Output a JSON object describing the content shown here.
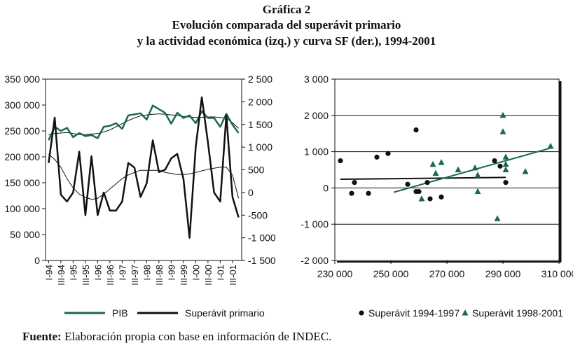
{
  "figure": {
    "label": "Gráfica 2",
    "title_line1": "Evolución comparada del superávit primario",
    "title_line2": "y la actividad económica (izq.) y curva SF (der.), 1994-2001",
    "source_label": "Fuente:",
    "source_text": "Elaboración propia con base en información de INDEC."
  },
  "colors": {
    "pib": "#1a6b47",
    "superavit": "#111111",
    "trend": "#1a6b47"
  },
  "chart_data": [
    {
      "type": "line",
      "y_left": {
        "ticks": [
          "350 000",
          "300 000",
          "250 000",
          "200 000",
          "150 000",
          "100 000",
          "50 000",
          "0"
        ],
        "range": [
          0,
          350000
        ]
      },
      "y_right": {
        "ticks": [
          "2 500",
          "2 000",
          "1 500",
          "1 000",
          "500",
          "0",
          "-500",
          "-1 000",
          "-1 500"
        ],
        "range": [
          -1500,
          2500
        ]
      },
      "x_ticks": [
        "I-94",
        "III-94",
        "I-95",
        "III-95",
        "I-96",
        "III-96",
        "I-97",
        "III-97",
        "I-98",
        "III-98",
        "I-99",
        "III-99",
        "I-00",
        "III-00",
        "I-01",
        "III-01"
      ],
      "legend": [
        "PIB",
        "Superávit primario"
      ],
      "series": [
        {
          "name": "PIB",
          "axis": "left",
          "values": [
            232000,
            258000,
            250000,
            256000,
            238000,
            246000,
            240000,
            242000,
            236000,
            258000,
            260000,
            265000,
            254000,
            280000,
            282000,
            284000,
            272000,
            299000,
            292000,
            285000,
            264000,
            285000,
            275000,
            280000,
            265000,
            288000,
            275000,
            275000,
            258000,
            283000,
            262000,
            246000
          ]
        },
        {
          "name": "Superávit primario",
          "axis": "right",
          "values": [
            650,
            1650,
            -50,
            -200,
            0,
            900,
            -500,
            800,
            -500,
            0,
            -400,
            -400,
            -200,
            650,
            550,
            -100,
            200,
            1150,
            450,
            500,
            750,
            850,
            300,
            -1000,
            1000,
            2100,
            1100,
            0,
            -200,
            1700,
            -100,
            -550
          ]
        },
        {
          "name": "Tendencia PIB",
          "axis": "left",
          "values": [
            205000,
            195000,
            180000,
            158000,
            140000,
            128000,
            122000,
            118000,
            120000,
            128000,
            138000,
            148000,
            158000,
            165000,
            170000,
            174000,
            174000,
            174000,
            174000,
            170000,
            168000,
            166000,
            166000,
            167000,
            170000,
            173000,
            176000,
            178000,
            180000,
            180000,
            165000,
            120000
          ]
        },
        {
          "name": "Tendencia superávit",
          "axis": "left",
          "values": [
            242000,
            245000,
            246000,
            247000,
            245000,
            243000,
            243000,
            244000,
            245000,
            248000,
            252000,
            258000,
            264000,
            270000,
            275000,
            279000,
            281000,
            282000,
            283000,
            282000,
            281000,
            280000,
            278000,
            277000,
            276000,
            276000,
            277000,
            277000,
            276000,
            274000,
            266000,
            255000
          ]
        }
      ]
    },
    {
      "type": "scatter",
      "x_ticks": [
        "230 000",
        "250 000",
        "270 000",
        "290 000",
        "310 000"
      ],
      "xlim": [
        230000,
        310000
      ],
      "y_ticks": [
        "3 000",
        "2 000",
        "1 000",
        "0",
        "-1 000",
        "-2 000"
      ],
      "ylim": [
        -2000,
        3000
      ],
      "legend": [
        "Superávit 1994-1997",
        "Superávit 1998-2001"
      ],
      "series": [
        {
          "name": "Superávit 1994-1997",
          "marker": "circle",
          "points": [
            [
              232000,
              750
            ],
            [
              236000,
              -150
            ],
            [
              237000,
              150
            ],
            [
              242000,
              -150
            ],
            [
              245000,
              850
            ],
            [
              249000,
              950
            ],
            [
              256000,
              100
            ],
            [
              259000,
              -100
            ],
            [
              259000,
              1600
            ],
            [
              260000,
              -100
            ],
            [
              263000,
              150
            ],
            [
              264000,
              -300
            ],
            [
              268000,
              -250
            ],
            [
              287000,
              750
            ],
            [
              289000,
              600
            ],
            [
              291000,
              150
            ]
          ]
        },
        {
          "name": "Superávit 1998-2001",
          "marker": "triangle",
          "points": [
            [
              261000,
              -300
            ],
            [
              265000,
              650
            ],
            [
              266000,
              400
            ],
            [
              268000,
              700
            ],
            [
              274000,
              500
            ],
            [
              280000,
              550
            ],
            [
              281000,
              -100
            ],
            [
              281000,
              350
            ],
            [
              288000,
              -850
            ],
            [
              290000,
              1550
            ],
            [
              290000,
              2000
            ],
            [
              291000,
              650
            ],
            [
              291000,
              500
            ],
            [
              291000,
              850
            ],
            [
              298000,
              450
            ],
            [
              307000,
              1150
            ]
          ]
        }
      ],
      "fit_lines": [
        {
          "series": "Superávit 1994-1997",
          "from": [
            232000,
            240
          ],
          "to": [
            291000,
            290
          ]
        },
        {
          "series": "Superávit 1998-2001",
          "from": [
            251000,
            -120
          ],
          "to": [
            307000,
            1100
          ]
        }
      ]
    }
  ]
}
